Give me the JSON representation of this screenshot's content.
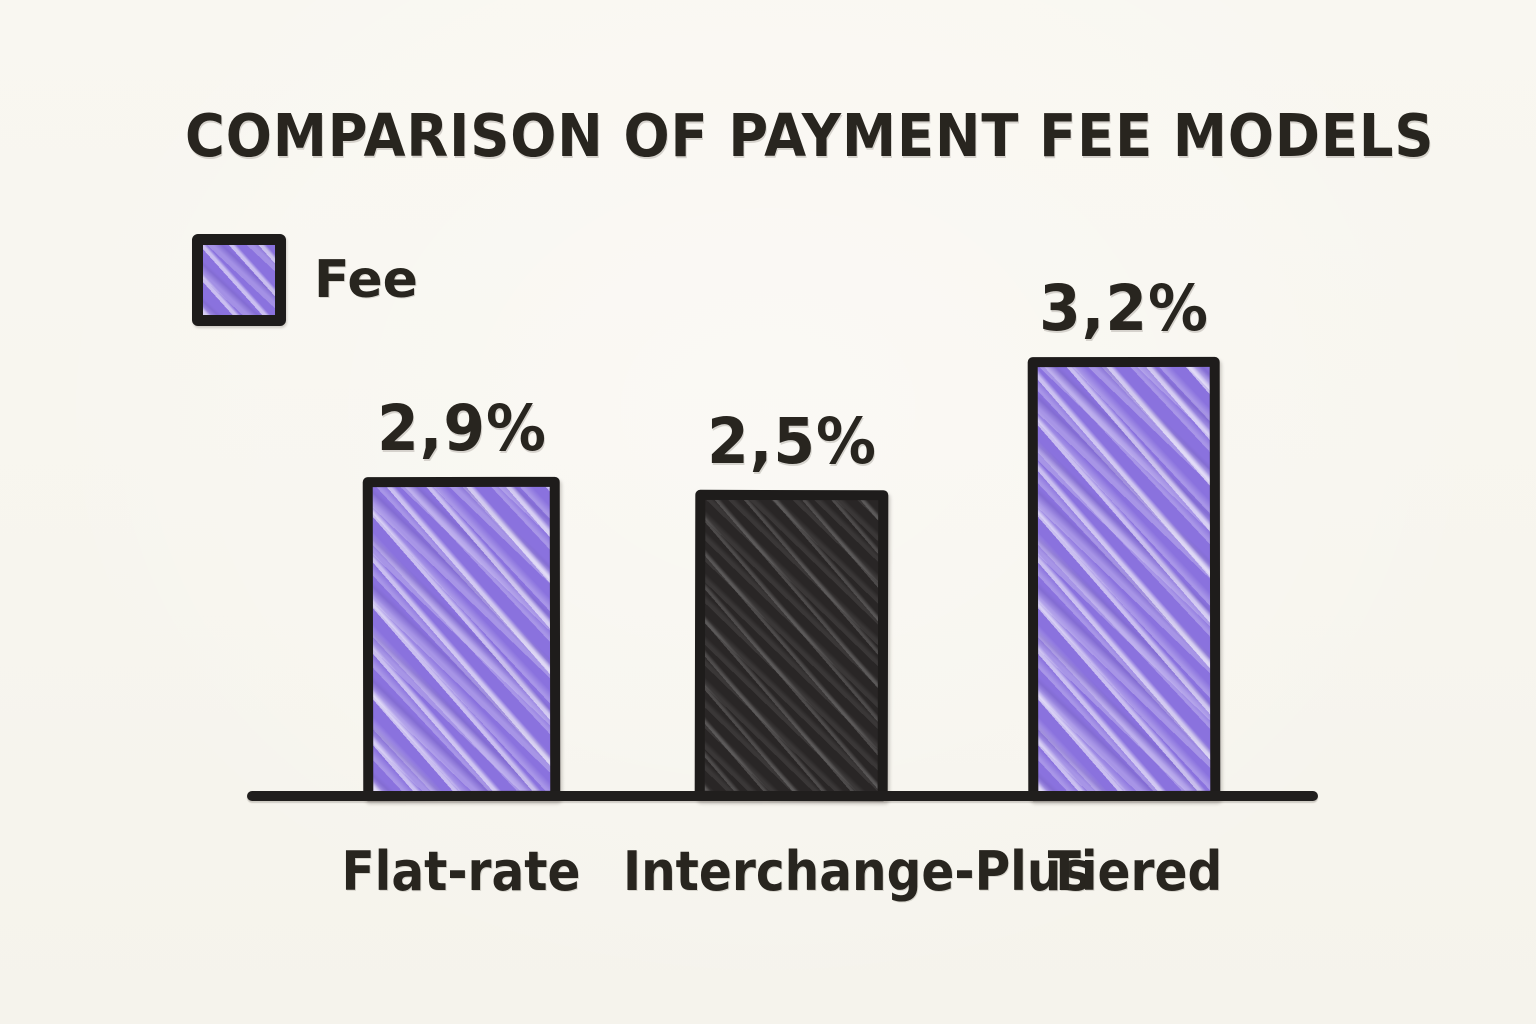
{
  "title": "COMPARISON OF PAYMENT FEE MODELS",
  "legend": {
    "label": "Fee",
    "swatch_color": "#8a72de"
  },
  "chart_data": {
    "type": "bar",
    "title": "COMPARISON OF PAYMENT FEE MODELS",
    "categories": [
      "Flat-rate",
      "Interchange-Plus",
      "Tiered"
    ],
    "series": [
      {
        "name": "Fee",
        "values": [
          2.9,
          2.5,
          3.2
        ]
      }
    ],
    "value_labels": [
      "2,9%",
      "2,5%",
      "3,2%"
    ],
    "unit": "%",
    "decimal_separator": ",",
    "bar_colors": [
      "#8a72de",
      "#292626",
      "#8a72de"
    ],
    "outline_color": "#1e1c1b",
    "legend_position": "top-left",
    "grid": false,
    "y_axis_visible": false,
    "x_baseline_visible": true,
    "style": "hand-drawn scribble / sketch"
  },
  "colors": {
    "background": "#f8f6ef",
    "ink": "#28251f",
    "purple_fill": "#8a72de",
    "dark_fill": "#292626",
    "outline": "#1e1c1b"
  }
}
